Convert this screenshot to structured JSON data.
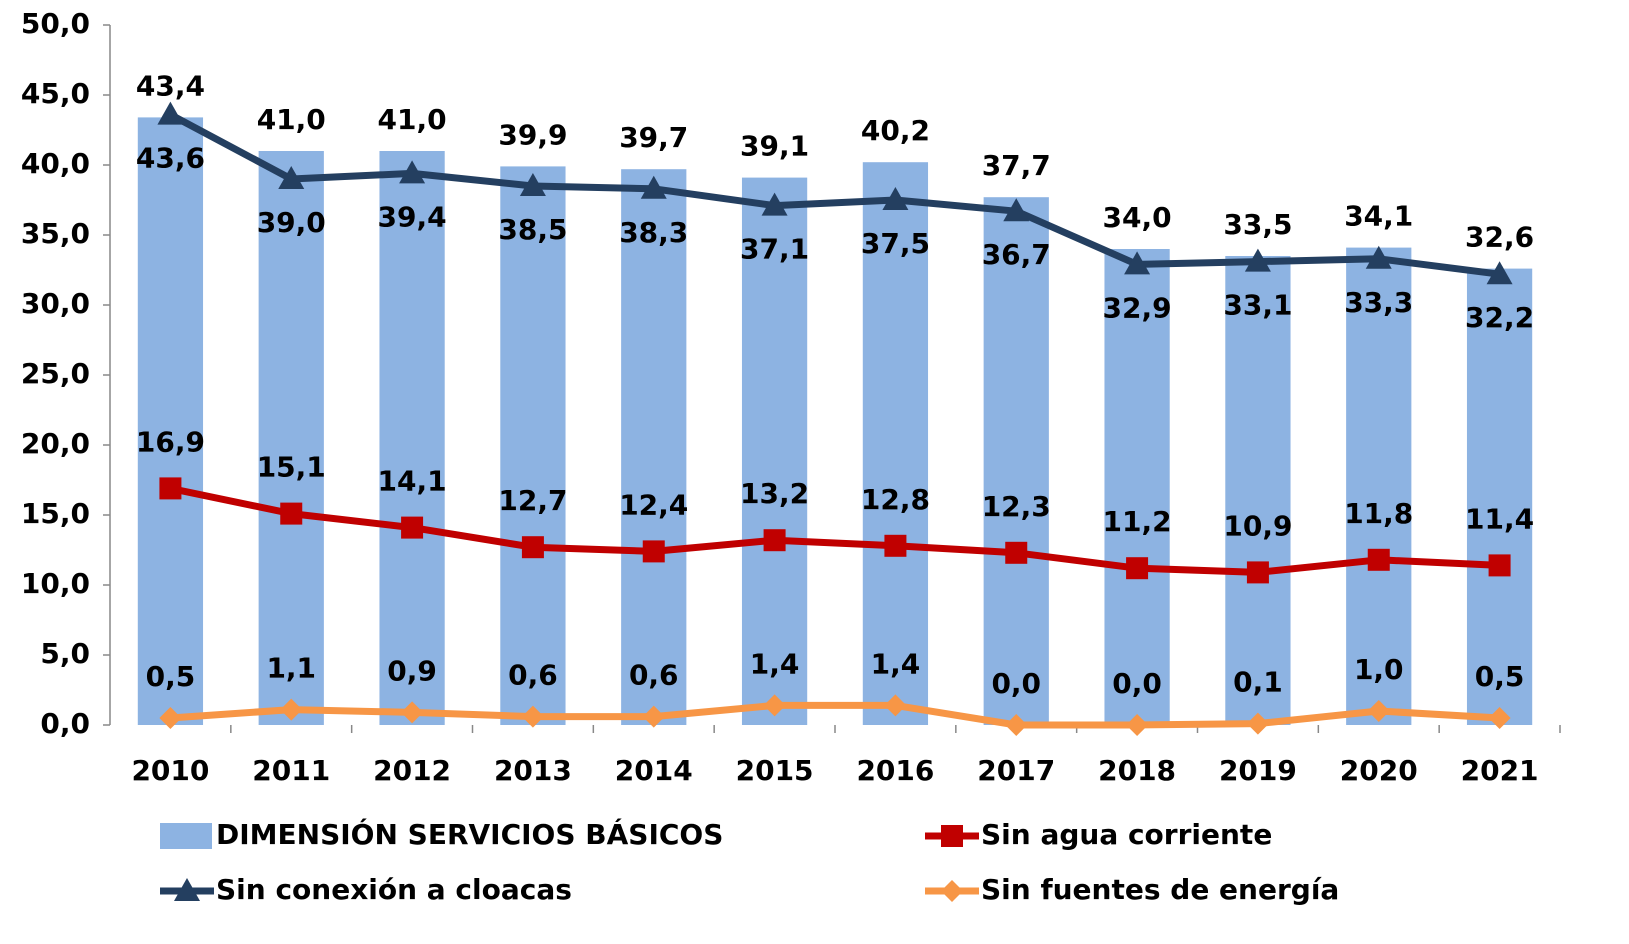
{
  "chart_data": {
    "type": "bar",
    "categories": [
      "2010",
      "2011",
      "2012",
      "2013",
      "2014",
      "2015",
      "2016",
      "2017",
      "2018",
      "2019",
      "2020",
      "2021"
    ],
    "ylim": [
      0,
      50
    ],
    "yticks": [
      {
        "value": 0,
        "label": "0,0"
      },
      {
        "value": 5,
        "label": "5,0"
      },
      {
        "value": 10,
        "label": "10,0"
      },
      {
        "value": 15,
        "label": "15,0"
      },
      {
        "value": 20,
        "label": "20,0"
      },
      {
        "value": 25,
        "label": "25,0"
      },
      {
        "value": 30,
        "label": "30,0"
      },
      {
        "value": 35,
        "label": "35,0"
      },
      {
        "value": 40,
        "label": "40,0"
      },
      {
        "value": 45,
        "label": "45,0"
      },
      {
        "value": 50,
        "label": "50,0"
      }
    ],
    "series": [
      {
        "name": "DIMENSIÓN SERVICIOS BÁSICOS",
        "type": "bar",
        "color": "#8db3e2",
        "values": [
          43.4,
          41.0,
          41.0,
          39.9,
          39.7,
          39.1,
          40.2,
          37.7,
          34.0,
          33.5,
          34.1,
          32.6
        ],
        "value_labels": [
          "43,4",
          "41,0",
          "41,0",
          "39,9",
          "39,7",
          "39,1",
          "40,2",
          "37,7",
          "34,0",
          "33,5",
          "34,1",
          "32,6"
        ]
      },
      {
        "name": "Sin agua corriente",
        "type": "line",
        "marker": "square",
        "color": "#c00000",
        "values": [
          16.9,
          15.1,
          14.1,
          12.7,
          12.4,
          13.2,
          12.8,
          12.3,
          11.2,
          10.9,
          11.8,
          11.4
        ],
        "value_labels": [
          "16,9",
          "15,1",
          "14,1",
          "12,7",
          "12,4",
          "13,2",
          "12,8",
          "12,3",
          "11,2",
          "10,9",
          "11,8",
          "11,4"
        ]
      },
      {
        "name": "Sin conexión a cloacas",
        "type": "line",
        "marker": "triangle",
        "color": "#243f60",
        "values": [
          43.6,
          39.0,
          39.4,
          38.5,
          38.3,
          37.1,
          37.5,
          36.7,
          32.9,
          33.1,
          33.3,
          32.2
        ],
        "value_labels": [
          "43,6",
          "39,0",
          "39,4",
          "38,5",
          "38,3",
          "37,1",
          "37,5",
          "36,7",
          "32,9",
          "33,1",
          "33,3",
          "32,2"
        ]
      },
      {
        "name": "Sin fuentes de energía",
        "type": "line",
        "marker": "diamond",
        "color": "#f79646",
        "values": [
          0.5,
          1.1,
          0.9,
          0.6,
          0.6,
          1.4,
          1.4,
          0.0,
          0.0,
          0.1,
          1.0,
          0.5
        ],
        "value_labels": [
          "0,5",
          "1,1",
          "0,9",
          "0,6",
          "0,6",
          "1,4",
          "1,4",
          "0,0",
          "0,0",
          "0,1",
          "1,0",
          "0,5"
        ]
      }
    ]
  }
}
